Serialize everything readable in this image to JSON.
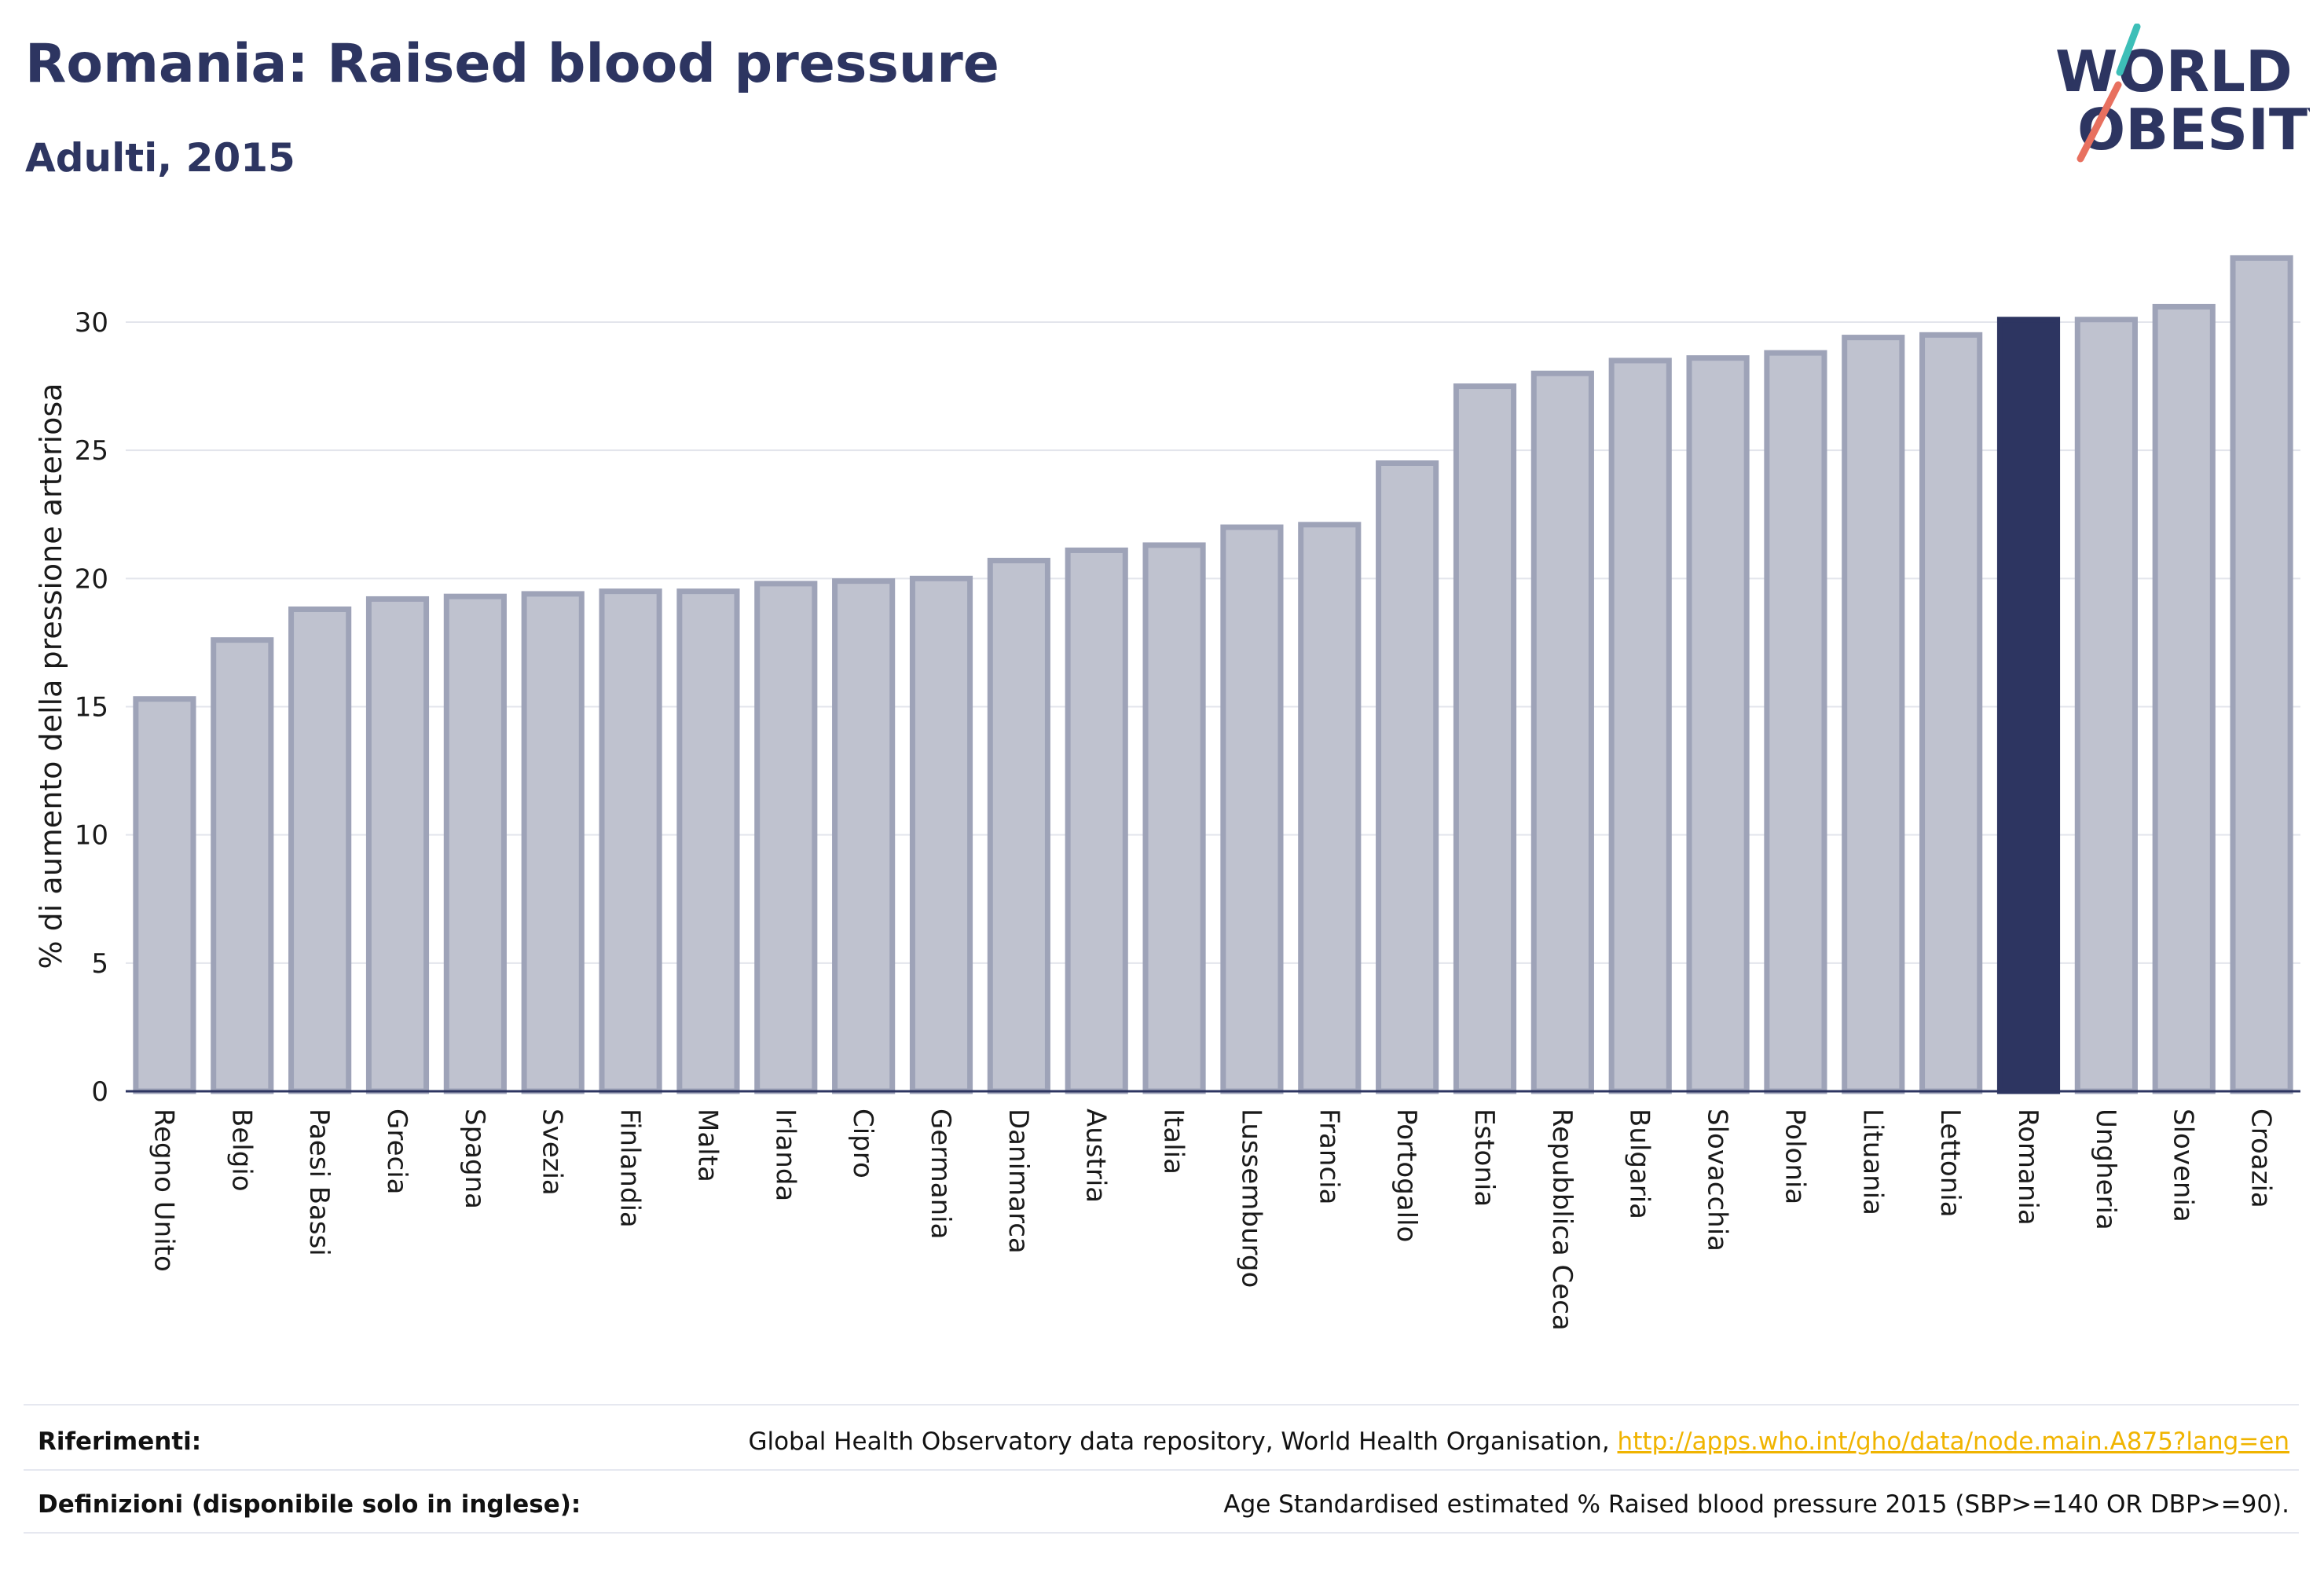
{
  "header": {
    "title": "Romania: Raised blood pressure",
    "subtitle": "Adulti, 2015"
  },
  "logo": {
    "line1": "WORLD",
    "line2": "OBESITY",
    "line1_o_accent": "#3dbfb8",
    "line2_o_accent": "#e8705f"
  },
  "colors": {
    "bar_default": "#bfc2cf",
    "bar_default_border": "#9ea3b8",
    "bar_highlight": "#2d3561",
    "title": "#2d3561",
    "link": "#f0b400"
  },
  "chart_data": {
    "type": "bar",
    "title": "Romania: Raised blood pressure",
    "subtitle": "Adulti, 2015",
    "xlabel": "",
    "ylabel": "% di aumento della pressione arteriosa",
    "ylim": [
      0,
      33
    ],
    "yticks": [
      0,
      5,
      10,
      15,
      20,
      25,
      30
    ],
    "grid": true,
    "highlight": "Romania",
    "categories": [
      "Regno Unito",
      "Belgio",
      "Paesi Bassi",
      "Grecia",
      "Spagna",
      "Svezia",
      "Finlandia",
      "Malta",
      "Irlanda",
      "Cipro",
      "Germania",
      "Danimarca",
      "Austria",
      "Italia",
      "Lussemburgo",
      "Francia",
      "Portogallo",
      "Estonia",
      "Repubblica Ceca",
      "Bulgaria",
      "Slovacchia",
      "Polonia",
      "Lituania",
      "Lettonia",
      "Romania",
      "Ungheria",
      "Slovenia",
      "Croazia"
    ],
    "values": [
      15.3,
      17.6,
      18.8,
      19.2,
      19.3,
      19.4,
      19.5,
      19.5,
      19.8,
      19.9,
      20.0,
      20.7,
      21.1,
      21.3,
      22.0,
      22.1,
      24.5,
      27.5,
      28.0,
      28.5,
      28.6,
      28.8,
      29.4,
      29.5,
      30.1,
      30.1,
      30.6,
      32.5
    ]
  },
  "footer": {
    "references_label": "Riferimenti:",
    "references_text": "Global Health Observatory data repository, World Health Organisation, ",
    "references_link": "http://apps.who.int/gho/data/node.main.A875?lang=en",
    "definitions_label": "Definizioni (disponibile solo in inglese):",
    "definitions_text": "Age Standardised estimated % Raised blood pressure 2015 (SBP>=140 OR DBP>=90)."
  }
}
